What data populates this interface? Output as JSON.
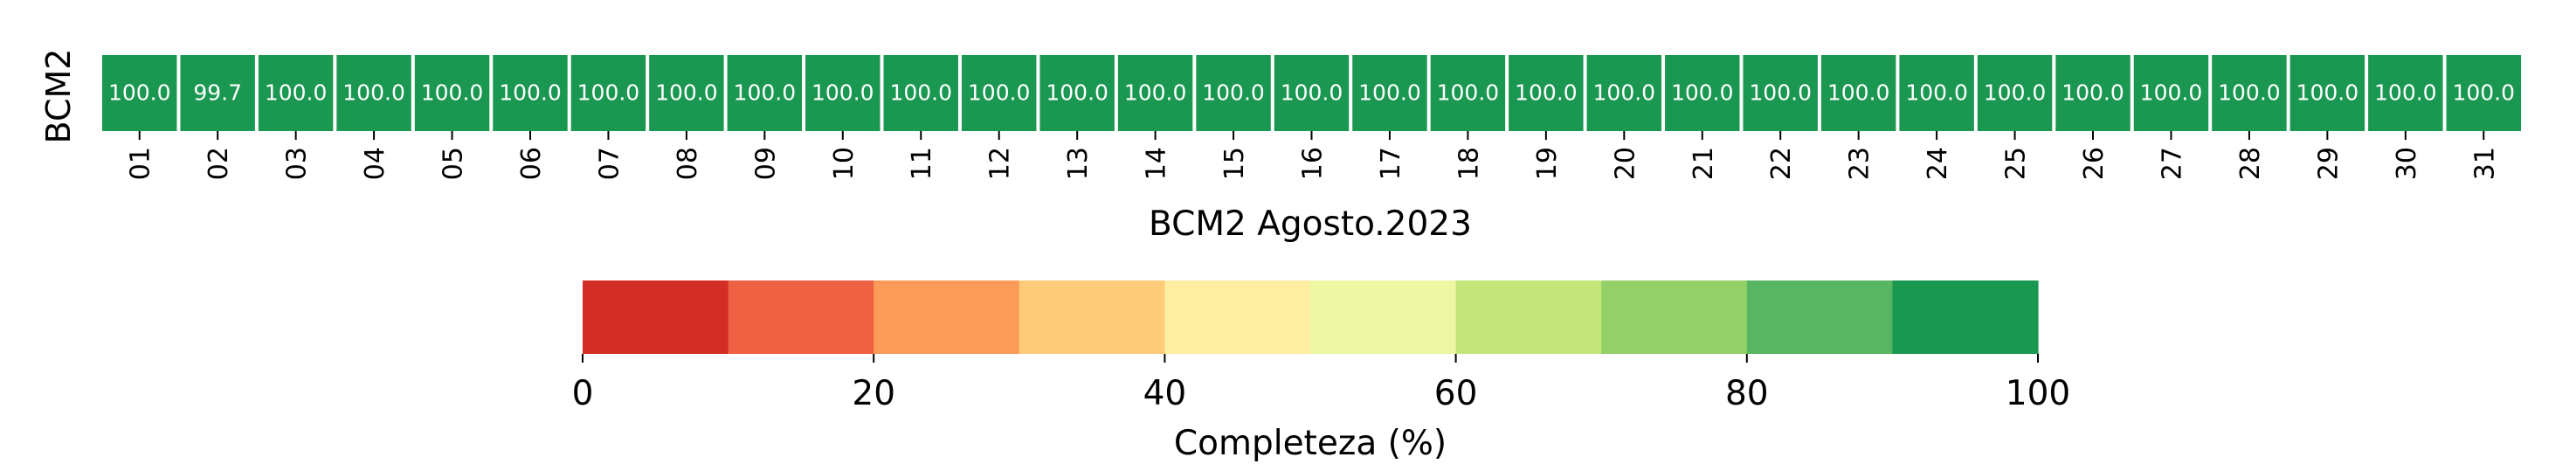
{
  "chart_data": {
    "type": "heatmap",
    "title": "",
    "ylabel": "BCM2",
    "xlabel": "BCM2 Agosto.2023",
    "row": "BCM2",
    "x": [
      "01",
      "02",
      "03",
      "04",
      "05",
      "06",
      "07",
      "08",
      "09",
      "10",
      "11",
      "12",
      "13",
      "14",
      "15",
      "16",
      "17",
      "18",
      "19",
      "20",
      "21",
      "22",
      "23",
      "24",
      "25",
      "26",
      "27",
      "28",
      "29",
      "30",
      "31"
    ],
    "values": [
      100.0,
      99.7,
      100.0,
      100.0,
      100.0,
      100.0,
      100.0,
      100.0,
      100.0,
      100.0,
      100.0,
      100.0,
      100.0,
      100.0,
      100.0,
      100.0,
      100.0,
      100.0,
      100.0,
      100.0,
      100.0,
      100.0,
      100.0,
      100.0,
      100.0,
      100.0,
      100.0,
      100.0,
      100.0,
      100.0,
      100.0
    ],
    "colorbar": {
      "label": "Completeza (%)",
      "range": [
        0,
        100
      ],
      "ticks": [
        0,
        20,
        40,
        60,
        80,
        100
      ],
      "colors": [
        "#d42c27",
        "#ee6243",
        "#fa9c58",
        "#fecb78",
        "#feeea1",
        "#edf7a4",
        "#c4e57a",
        "#93d068",
        "#58b662",
        "#1a9750"
      ]
    }
  }
}
